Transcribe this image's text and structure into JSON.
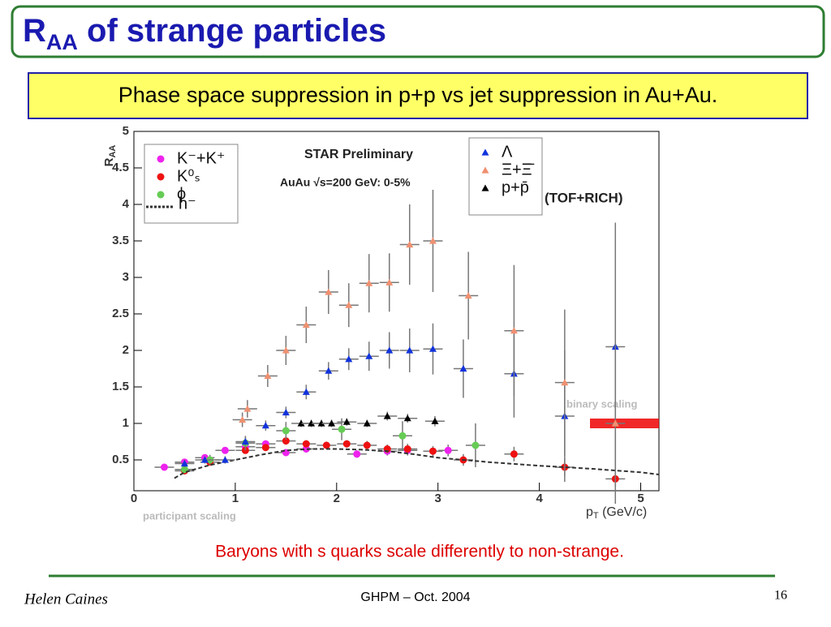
{
  "slide": {
    "title": "R",
    "title_sub": "AA",
    "title_rest": " of strange particles",
    "subtitle": "Phase space suppression in p+p vs jet suppression in Au+Au.",
    "caption": "Baryons with s quarks scale differently to non-strange.",
    "author": "Helen Caines",
    "event": "GHPM – Oct. 2004",
    "page": "16"
  },
  "chart_data": {
    "type": "scatter",
    "annotations": [
      "STAR Preliminary",
      "AuAu √s=200 GeV: 0-5%",
      "(TOF+RICH)",
      "participant scaling"
    ],
    "reference_line": {
      "label": "binary scaling",
      "value": 1,
      "color": "#ee1111"
    },
    "x_label": "p",
    "x_label_sub": "T",
    "x_label_rest": " (GeV/c)",
    "y_label": "R",
    "y_label_sub": "AA",
    "xlim": [
      0,
      5.18
    ],
    "ylim": [
      0,
      5
    ],
    "xticks": [
      0,
      1,
      2,
      3,
      4,
      5
    ],
    "yticks": [
      0.5,
      1,
      1.5,
      2,
      2.5,
      3,
      3.5,
      4,
      4.5,
      5
    ],
    "series": [
      {
        "name": "K⁻+K⁺",
        "color": "#ee22ee",
        "marker": "circle",
        "legend": "upper left",
        "x": [
          0.3,
          0.5,
          0.7,
          0.9,
          1.1,
          1.3,
          1.5,
          1.7,
          2.2,
          2.5,
          2.7,
          3.1
        ],
        "values": [
          0.4,
          0.47,
          0.53,
          0.63,
          0.68,
          0.72,
          0.6,
          0.65,
          0.58,
          0.62,
          0.63,
          0.63
        ],
        "errors": [
          0.03,
          0.03,
          0.03,
          0.03,
          0.04,
          0.04,
          0.04,
          0.05,
          0.05,
          0.06,
          0.07,
          0.08
        ]
      },
      {
        "name": "K⁰ₛ",
        "color": "#ee1111",
        "marker": "circle",
        "legend": "upper left",
        "x": [
          0.5,
          0.75,
          1.1,
          1.3,
          1.5,
          1.7,
          1.9,
          2.1,
          2.3,
          2.5,
          2.7,
          2.95,
          3.25,
          3.75,
          4.25,
          4.75
        ],
        "values": [
          0.35,
          0.47,
          0.63,
          0.67,
          0.76,
          0.72,
          0.7,
          0.72,
          0.7,
          0.65,
          0.65,
          0.62,
          0.5,
          0.58,
          0.4,
          0.24
        ],
        "errors": [
          0.03,
          0.03,
          0.04,
          0.04,
          0.05,
          0.05,
          0.05,
          0.05,
          0.06,
          0.06,
          0.07,
          0.07,
          0.08,
          0.1,
          0.12,
          0.1
        ]
      },
      {
        "name": "ϕ",
        "color": "#66cc55",
        "marker": "circle",
        "legend": "upper left",
        "x": [
          0.5,
          0.75,
          1.1,
          1.5,
          2.05,
          2.65,
          3.37
        ],
        "values": [
          0.37,
          0.5,
          0.73,
          0.9,
          0.92,
          0.83,
          0.7
        ],
        "errors": [
          0.05,
          0.07,
          0.1,
          0.12,
          0.15,
          0.2,
          0.3
        ]
      },
      {
        "name": "h⁻",
        "color": "#333333",
        "marker": "dashed-line",
        "legend": "upper left",
        "x": [
          0.4,
          0.5,
          0.75,
          1.0,
          1.25,
          1.5,
          1.75,
          2.0,
          2.25,
          2.5,
          2.75,
          3.0,
          3.5,
          4.0,
          4.5,
          5.0,
          5.18
        ],
        "values": [
          0.25,
          0.33,
          0.43,
          0.5,
          0.57,
          0.63,
          0.65,
          0.65,
          0.64,
          0.62,
          0.58,
          0.53,
          0.47,
          0.42,
          0.38,
          0.33,
          0.3
        ]
      },
      {
        "name": "Λ",
        "color": "#1133dd",
        "marker": "triangle",
        "legend": "upper right",
        "x": [
          0.5,
          0.7,
          0.9,
          1.1,
          1.3,
          1.5,
          1.7,
          1.92,
          2.12,
          2.32,
          2.52,
          2.72,
          2.95,
          3.25,
          3.75,
          4.25,
          4.75
        ],
        "values": [
          0.45,
          0.5,
          0.5,
          0.75,
          0.97,
          1.15,
          1.43,
          1.72,
          1.88,
          1.92,
          2.0,
          2.0,
          2.02,
          1.75,
          1.68,
          1.1,
          2.05
        ],
        "errors": [
          0.05,
          0.05,
          0.05,
          0.06,
          0.07,
          0.08,
          0.1,
          0.12,
          0.15,
          0.2,
          0.25,
          0.3,
          0.35,
          0.4,
          0.6,
          0.9,
          1.7
        ]
      },
      {
        "name": "Ξ+Ξ̄",
        "color": "#f09070",
        "marker": "triangle",
        "legend": "upper right",
        "x": [
          1.07,
          1.12,
          1.32,
          1.5,
          1.7,
          1.92,
          2.12,
          2.32,
          2.52,
          2.72,
          2.95,
          3.3,
          3.75,
          4.25,
          4.75
        ],
        "values": [
          1.05,
          1.2,
          1.65,
          2.0,
          2.35,
          2.8,
          2.62,
          2.92,
          2.93,
          3.45,
          3.5,
          2.75,
          2.27,
          1.56,
          1.0
        ],
        "errors": [
          0.1,
          0.12,
          0.15,
          0.2,
          0.25,
          0.3,
          0.3,
          0.4,
          0.4,
          0.55,
          0.7,
          0.6,
          0.9,
          1.0,
          1.1
        ]
      },
      {
        "name": "p+p̄",
        "color": "#000000",
        "marker": "triangle",
        "legend": "upper right",
        "x": [
          1.65,
          1.75,
          1.85,
          1.95,
          2.1,
          2.3,
          2.5,
          2.7,
          2.97
        ],
        "values": [
          1.0,
          1.0,
          1.0,
          1.0,
          1.02,
          1.0,
          1.1,
          1.07,
          1.03
        ],
        "errors": [
          0.05,
          0.05,
          0.05,
          0.05,
          0.05,
          0.05,
          0.06,
          0.06,
          0.07
        ]
      }
    ]
  }
}
